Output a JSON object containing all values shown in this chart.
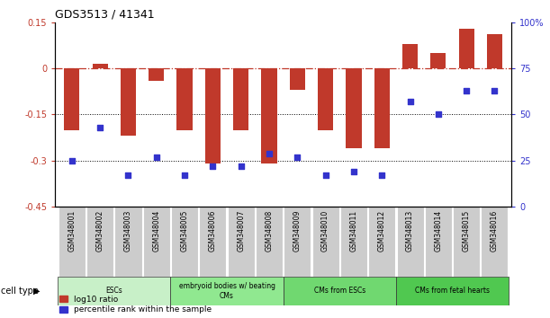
{
  "title": "GDS3513 / 41341",
  "samples": [
    "GSM348001",
    "GSM348002",
    "GSM348003",
    "GSM348004",
    "GSM348005",
    "GSM348006",
    "GSM348007",
    "GSM348008",
    "GSM348009",
    "GSM348010",
    "GSM348011",
    "GSM348012",
    "GSM348013",
    "GSM348014",
    "GSM348015",
    "GSM348016"
  ],
  "log10_ratio": [
    -0.2,
    0.015,
    -0.22,
    -0.04,
    -0.2,
    -0.31,
    -0.2,
    -0.31,
    -0.07,
    -0.2,
    -0.26,
    -0.26,
    0.08,
    0.05,
    0.13,
    0.11
  ],
  "percentile_rank": [
    25,
    43,
    17,
    27,
    17,
    22,
    22,
    29,
    27,
    17,
    19,
    17,
    57,
    50,
    63,
    63
  ],
  "ylim_left": [
    -0.45,
    0.15
  ],
  "ylim_right": [
    0,
    100
  ],
  "yticks_left": [
    -0.45,
    -0.3,
    -0.15,
    0.0,
    0.15
  ],
  "yticks_right": [
    0,
    25,
    50,
    75,
    100
  ],
  "ytick_labels_left": [
    "-0.45",
    "-0.3",
    "-0.15",
    "0",
    "0.15"
  ],
  "ytick_labels_right": [
    "0",
    "25",
    "50",
    "75",
    "100%"
  ],
  "hline_y": 0.0,
  "dotted_lines": [
    -0.15,
    -0.3
  ],
  "bar_color": "#c0392b",
  "scatter_color": "#3333cc",
  "cell_groups": [
    {
      "label": "ESCs",
      "start": 0,
      "end": 3,
      "color": "#c8f0c8"
    },
    {
      "label": "embryoid bodies w/ beating\nCMs",
      "start": 4,
      "end": 7,
      "color": "#90e890"
    },
    {
      "label": "CMs from ESCs",
      "start": 8,
      "end": 11,
      "color": "#70d870"
    },
    {
      "label": "CMs from fetal hearts",
      "start": 12,
      "end": 15,
      "color": "#50c850"
    }
  ],
  "cell_type_label": "cell type",
  "legend_items": [
    {
      "label": "log10 ratio",
      "color": "#c0392b"
    },
    {
      "label": "percentile rank within the sample",
      "color": "#3333cc"
    }
  ],
  "bg_color": "#ffffff",
  "bar_width": 0.55
}
